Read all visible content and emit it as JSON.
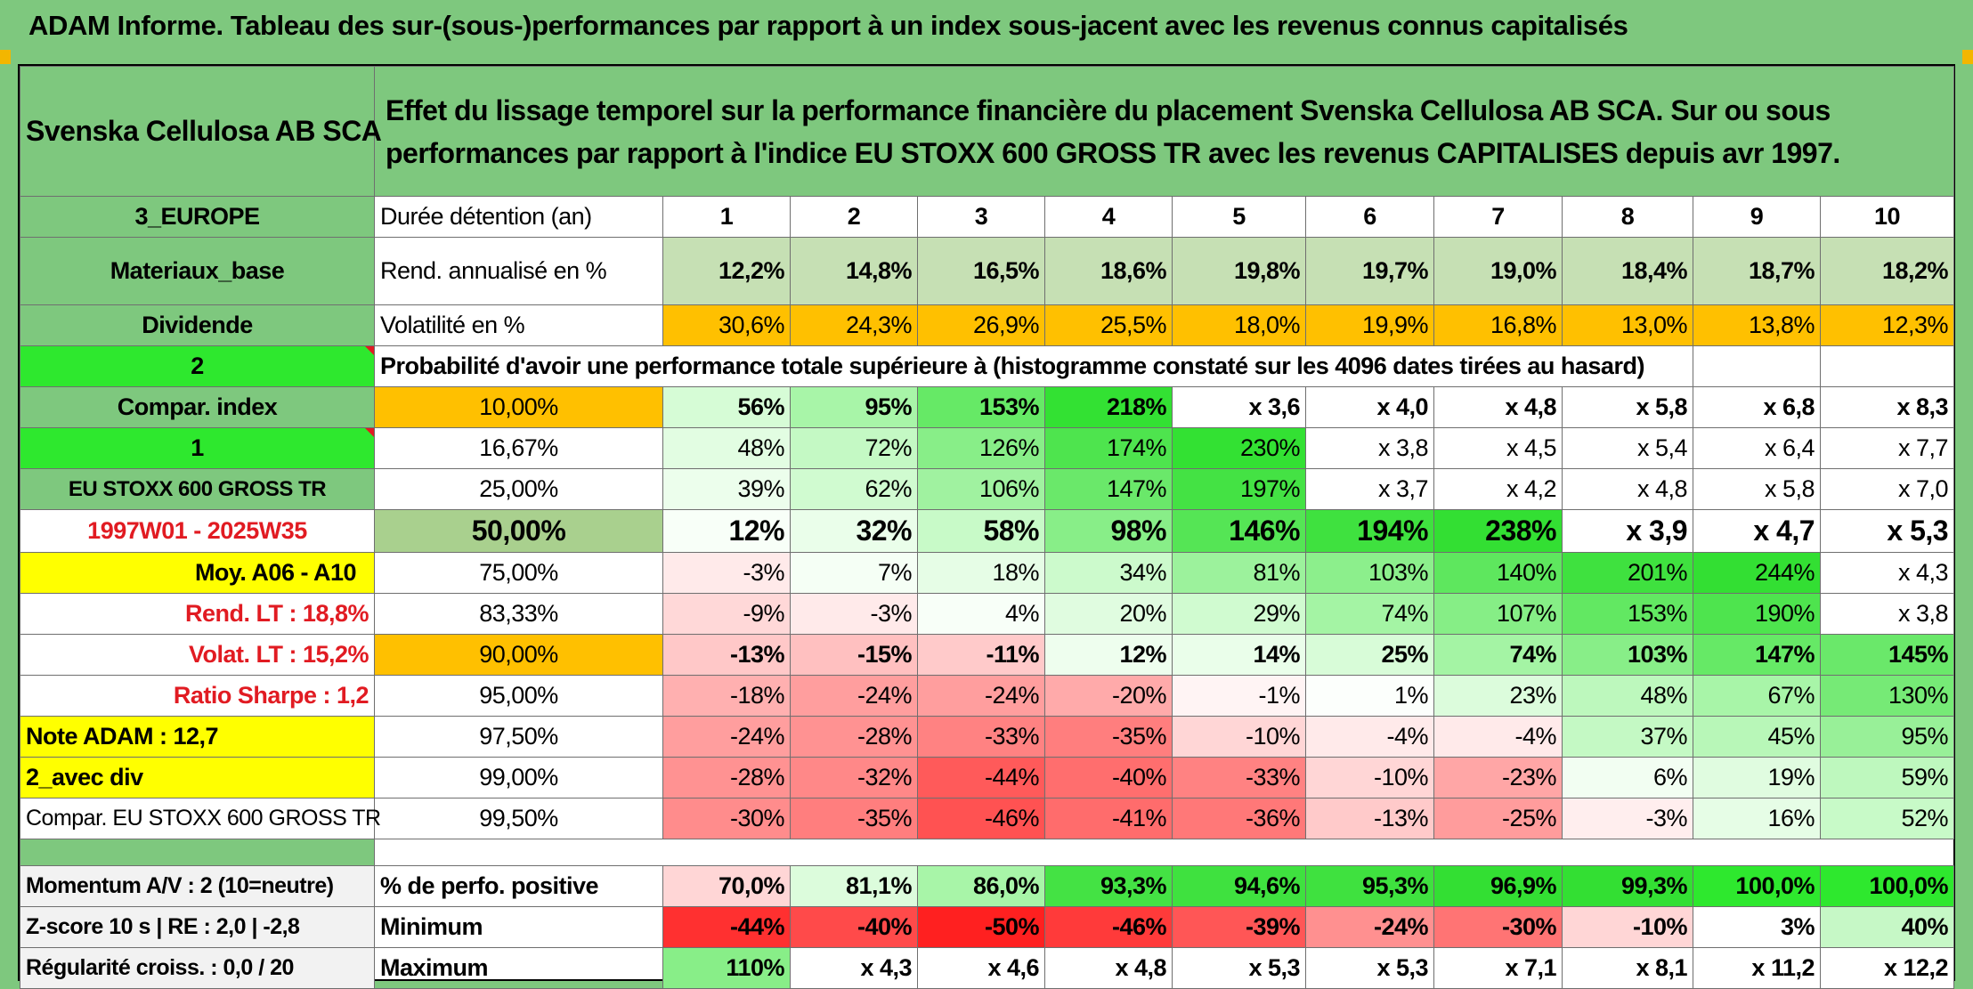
{
  "title": "ADAM Informe. Tableau des sur-(sous-)performances par rapport à un index sous-jacent avec les revenus connus capitalisés",
  "left": {
    "company": "Svenska Cellulosa AB SCA",
    "region": "3_EUROPE",
    "sector": "Materiaux_base",
    "dividend": "Dividende",
    "val2": "2",
    "compar_index": "Compar. index",
    "val1": "1",
    "index_name": "EU STOXX 600 GROSS TR",
    "period": "1997W01 - 2025W35",
    "moy": "Moy. A06 - A10",
    "rend_lt": "Rend. LT :   18,8%",
    "volat_lt": "Volat. LT :   15,2%",
    "sharpe": "Ratio Sharpe :   1,2",
    "note": "Note ADAM : 12,7",
    "avec_div": "2_avec div",
    "compar_full": "Compar. EU STOXX 600 GROSS TR",
    "momentum": "Momentum A/V : 2 (10=neutre)",
    "zscore": "Z-score 10 s | RE : 2,0 | -2,8",
    "regularite": "Régularité croiss. : 0,0 / 20"
  },
  "description": "Effet du lissage temporel sur la performance financière du placement Svenska Cellulosa AB SCA. Sur ou sous performances par rapport à l'indice EU STOXX 600 GROSS TR avec les revenus CAPITALISES depuis avr 1997.",
  "labels": {
    "duree": "Durée détention (an)",
    "rend": "Rend. annualisé en %",
    "vol": "Volatilité en %",
    "proba": "Probabilité d'avoir une performance totale supérieure à (histogramme constaté sur les 4096 dates tirées au hasard)",
    "positive": "% de perfo. positive",
    "minimum": "Minimum",
    "maximum": "Maximum"
  },
  "years": [
    "1",
    "2",
    "3",
    "4",
    "5",
    "6",
    "7",
    "8",
    "9",
    "10"
  ],
  "rend": [
    "12,2%",
    "14,8%",
    "16,5%",
    "18,6%",
    "19,8%",
    "19,7%",
    "19,0%",
    "18,4%",
    "18,7%",
    "18,2%"
  ],
  "vol": [
    "30,6%",
    "24,3%",
    "26,9%",
    "25,5%",
    "18,0%",
    "19,9%",
    "16,8%",
    "13,0%",
    "13,8%",
    "12,3%"
  ],
  "quantiles": [
    {
      "p": "10,00%",
      "v": [
        "56%",
        "95%",
        "153%",
        "218%",
        "x 3,6",
        "x 4,0",
        "x 4,8",
        "x 5,8",
        "x 6,8",
        "x 8,3"
      ]
    },
    {
      "p": "16,67%",
      "v": [
        "48%",
        "72%",
        "126%",
        "174%",
        "230%",
        "x 3,8",
        "x 4,5",
        "x 5,4",
        "x 6,4",
        "x 7,7"
      ]
    },
    {
      "p": "25,00%",
      "v": [
        "39%",
        "62%",
        "106%",
        "147%",
        "197%",
        "x 3,7",
        "x 4,2",
        "x 4,8",
        "x 5,8",
        "x 7,0"
      ]
    },
    {
      "p": "50,00%",
      "v": [
        "12%",
        "32%",
        "58%",
        "98%",
        "146%",
        "194%",
        "238%",
        "x 3,9",
        "x 4,7",
        "x 5,3"
      ]
    },
    {
      "p": "75,00%",
      "v": [
        "-3%",
        "7%",
        "18%",
        "34%",
        "81%",
        "103%",
        "140%",
        "201%",
        "244%",
        "x 4,3"
      ]
    },
    {
      "p": "83,33%",
      "v": [
        "-9%",
        "-3%",
        "4%",
        "20%",
        "29%",
        "74%",
        "107%",
        "153%",
        "190%",
        "x 3,8"
      ]
    },
    {
      "p": "90,00%",
      "v": [
        "-13%",
        "-15%",
        "-11%",
        "12%",
        "14%",
        "25%",
        "74%",
        "103%",
        "147%",
        "145%"
      ]
    },
    {
      "p": "95,00%",
      "v": [
        "-18%",
        "-24%",
        "-24%",
        "-20%",
        "-1%",
        "1%",
        "23%",
        "48%",
        "67%",
        "130%"
      ]
    },
    {
      "p": "97,50%",
      "v": [
        "-24%",
        "-28%",
        "-33%",
        "-35%",
        "-10%",
        "-4%",
        "-4%",
        "37%",
        "45%",
        "95%"
      ]
    },
    {
      "p": "99,00%",
      "v": [
        "-28%",
        "-32%",
        "-44%",
        "-40%",
        "-33%",
        "-10%",
        "-23%",
        "6%",
        "19%",
        "59%"
      ]
    },
    {
      "p": "99,50%",
      "v": [
        "-30%",
        "-35%",
        "-46%",
        "-41%",
        "-36%",
        "-13%",
        "-25%",
        "-3%",
        "16%",
        "52%"
      ]
    }
  ],
  "positive": [
    "70,0%",
    "81,1%",
    "86,0%",
    "93,3%",
    "94,6%",
    "95,3%",
    "96,9%",
    "99,3%",
    "100,0%",
    "100,0%"
  ],
  "minimum": [
    "-44%",
    "-40%",
    "-50%",
    "-46%",
    "-39%",
    "-24%",
    "-30%",
    "-10%",
    "3%",
    "40%"
  ],
  "maximum": [
    "110%",
    "x 4,3",
    "x 4,6",
    "x 4,8",
    "x 5,3",
    "x 5,3",
    "x 7,1",
    "x 8,1",
    "x 11,2",
    "x 12,2"
  ],
  "colors": {
    "rend": [
      "#c6e0b4",
      "#c6e0b4",
      "#c6e0b4",
      "#c6e0b4",
      "#c6e0b4",
      "#c6e0b4",
      "#c6e0b4",
      "#c6e0b4",
      "#c6e0b4",
      "#c6e0b4"
    ],
    "vol": [
      "#ffc000",
      "#ffc000",
      "#ffc000",
      "#ffc000",
      "#ffc000",
      "#ffc000",
      "#ffc000",
      "#ffc000",
      "#ffc000",
      "#ffc000"
    ],
    "q": [
      [
        "#d6fcd6",
        "#a8f5a8",
        "#66e966",
        "#33e133",
        "#fff",
        "#fff",
        "#fff",
        "#fff",
        "#fff",
        "#fff"
      ],
      [
        "#e2fde2",
        "#c4f9c4",
        "#88ee88",
        "#4ee44e",
        "#33e133",
        "#fff",
        "#fff",
        "#fff",
        "#fff",
        "#fff"
      ],
      [
        "#ecfeec",
        "#d0fbd0",
        "#a0f2a0",
        "#6ae86a",
        "#44e244",
        "#fff",
        "#fff",
        "#fff",
        "#fff",
        "#fff"
      ],
      [
        "#f8fff8",
        "#eafeea",
        "#c8fac8",
        "#88ee88",
        "#55e555",
        "#3fe13f",
        "#33df33",
        "#fff",
        "#fff",
        "#fff"
      ],
      [
        "#ffeaea",
        "#f5fff5",
        "#e6fde6",
        "#ccfacc",
        "#9cf29c",
        "#8cef8c",
        "#5ee75e",
        "#3fe13f",
        "#33df33",
        "#fff"
      ],
      [
        "#ffd8d8",
        "#ffeaea",
        "#f8fff8",
        "#e0fce0",
        "#d0fbd0",
        "#a4f4a4",
        "#86ee86",
        "#62e862",
        "#4ee44e",
        "#fff"
      ],
      [
        "#ffc8c8",
        "#ffc0c0",
        "#ffcaca",
        "#eefeee",
        "#eafeea",
        "#d8fcd8",
        "#a4f4a4",
        "#88ee88",
        "#66e966",
        "#6ae86a"
      ],
      [
        "#ffb0b0",
        "#ff9e9e",
        "#ff9e9e",
        "#ffaaaa",
        "#fff4f4",
        "#fcfffc",
        "#dcfcdc",
        "#bdf8bd",
        "#a8f5a8",
        "#76ea76"
      ],
      [
        "#ff9e9e",
        "#ff9292",
        "#ff8282",
        "#ff7e7e",
        "#ffd6d6",
        "#ffeaea",
        "#ffeaea",
        "#c4f9c4",
        "#b8f7b8",
        "#98f098"
      ],
      [
        "#ff9292",
        "#ff8888",
        "#ff5a5a",
        "#ff6e6e",
        "#ff8282",
        "#ffd6d6",
        "#ffa6a6",
        "#f2fef2",
        "#e0fce0",
        "#bef8be"
      ],
      [
        "#ff8c8c",
        "#ff7e7e",
        "#ff5252",
        "#ff6c6c",
        "#ff7878",
        "#ffcaca",
        "#ff9c9c",
        "#ffeeee",
        "#e6fde6",
        "#c8fac8"
      ]
    ],
    "positive": [
      "#ffd6d6",
      "#dcfcdc",
      "#a8f5a8",
      "#44e244",
      "#3fe13f",
      "#3fe13f",
      "#33df33",
      "#33df33",
      "#2ee82e",
      "#2ee82e"
    ],
    "minimum": [
      "#ff3030",
      "#ff4a4a",
      "#ff2020",
      "#ff3a3a",
      "#ff5656",
      "#ff9090",
      "#ff7474",
      "#ffd6d6",
      "#ffffff",
      "#c6f8c6"
    ],
    "maximum": [
      "#88ee88",
      "#fff",
      "#fff",
      "#fff",
      "#fff",
      "#fff",
      "#fff",
      "#fff",
      "#fff",
      "#fff"
    ]
  }
}
